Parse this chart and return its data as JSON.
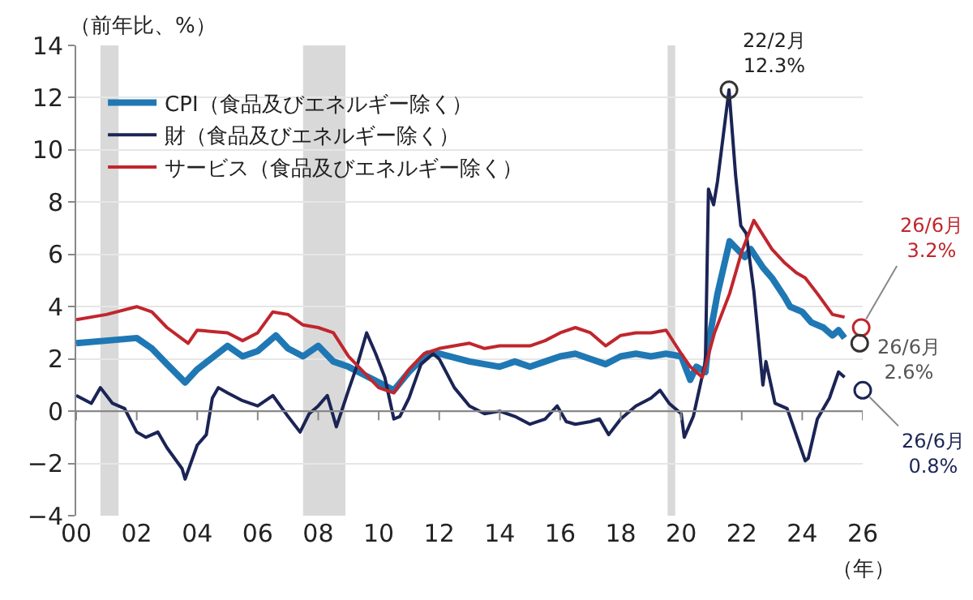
{
  "chart_data": {
    "type": "line",
    "ylabel": "（前年比、%）",
    "xlabel": "（年）",
    "xlim": [
      2000,
      2026
    ],
    "ylim": [
      -4,
      14
    ],
    "xticks": [
      {
        "value": 2000,
        "label": "00"
      },
      {
        "value": 2002,
        "label": "02"
      },
      {
        "value": 2004,
        "label": "04"
      },
      {
        "value": 2006,
        "label": "06"
      },
      {
        "value": 2008,
        "label": "08"
      },
      {
        "value": 2010,
        "label": "10"
      },
      {
        "value": 2012,
        "label": "12"
      },
      {
        "value": 2014,
        "label": "14"
      },
      {
        "value": 2016,
        "label": "16"
      },
      {
        "value": 2018,
        "label": "18"
      },
      {
        "value": 2020,
        "label": "20"
      },
      {
        "value": 2022,
        "label": "22"
      },
      {
        "value": 2024,
        "label": "24"
      },
      {
        "value": 2026,
        "label": "26"
      }
    ],
    "yticks": [
      -4,
      -2,
      0,
      2,
      4,
      6,
      8,
      10,
      12,
      14
    ],
    "grid": "y",
    "legend": "top left",
    "marker": "none",
    "line_style": "solid",
    "series": [
      {
        "name": "CPI（食品及びエネルギー除く）",
        "color": "#1f78b4",
        "x": [
          2000,
          2001,
          2002,
          2002.5,
          2003,
          2003.6,
          2004,
          2005,
          2005.5,
          2006,
          2006.6,
          2007,
          2007.5,
          2008,
          2008.5,
          2009,
          2009.5,
          2010,
          2010.5,
          2011,
          2011.6,
          2012,
          2013,
          2013.5,
          2014,
          2014.5,
          2015,
          2015.5,
          2016,
          2016.5,
          2017,
          2017.5,
          2018,
          2018.5,
          2019,
          2019.5,
          2020,
          2020.3,
          2020.5,
          2020.8,
          2020.9,
          2021.2,
          2021.6,
          2022.1,
          2022.3,
          2022.7,
          2023.0,
          2023.4,
          2023.6,
          2024,
          2024.3,
          2024.7,
          2025,
          2025.2,
          2025.4
        ],
        "values": [
          2.6,
          2.7,
          2.8,
          2.4,
          1.8,
          1.1,
          1.6,
          2.5,
          2.1,
          2.3,
          2.9,
          2.4,
          2.1,
          2.5,
          1.9,
          1.7,
          1.4,
          1.1,
          0.8,
          1.5,
          2.2,
          2.2,
          1.9,
          1.8,
          1.7,
          1.9,
          1.7,
          1.9,
          2.1,
          2.2,
          2.0,
          1.8,
          2.1,
          2.2,
          2.1,
          2.2,
          2.1,
          1.2,
          1.7,
          1.5,
          2.6,
          4.5,
          6.5,
          5.9,
          6.2,
          5.5,
          5.1,
          4.4,
          4.0,
          3.8,
          3.4,
          3.2,
          2.9,
          3.1,
          2.8
        ]
      },
      {
        "name": "財（食品及びエネルギー除く）",
        "color": "#1b2455",
        "x": [
          2000,
          2000.5,
          2000.8,
          2001.2,
          2001.6,
          2002,
          2002.3,
          2002.7,
          2003,
          2003.5,
          2003.6,
          2004,
          2004.3,
          2004.5,
          2004.7,
          2005,
          2005.5,
          2006,
          2006.5,
          2007,
          2007.4,
          2007.7,
          2008,
          2008.3,
          2008.6,
          2009,
          2009.3,
          2009.6,
          2009.9,
          2010.2,
          2010.5,
          2010.7,
          2011,
          2011.4,
          2011.8,
          2012,
          2012.5,
          2013,
          2013.5,
          2014,
          2014.5,
          2015,
          2015.5,
          2015.9,
          2016.2,
          2016.5,
          2017,
          2017.3,
          2017.6,
          2018,
          2018.5,
          2019,
          2019.3,
          2019.6,
          2020,
          2020.1,
          2020.4,
          2020.8,
          2020.9,
          2021.07,
          2021.2,
          2021.58,
          2021.8,
          2021.97,
          2022.15,
          2022.4,
          2022.7,
          2022.8,
          2023.1,
          2023.5,
          2023.8,
          2024.1,
          2024.2,
          2024.5,
          2024.9,
          2025.2,
          2025.4
        ],
        "values": [
          0.6,
          0.3,
          0.9,
          0.3,
          0.1,
          -0.8,
          -1.0,
          -0.8,
          -1.4,
          -2.2,
          -2.6,
          -1.3,
          -0.9,
          0.5,
          0.9,
          0.7,
          0.4,
          0.2,
          0.6,
          -0.2,
          -0.8,
          -0.1,
          0.2,
          0.6,
          -0.6,
          0.8,
          1.8,
          3.0,
          2.2,
          1.3,
          -0.3,
          -0.2,
          0.5,
          1.8,
          2.2,
          2.0,
          0.9,
          0.2,
          -0.1,
          0.0,
          -0.2,
          -0.5,
          -0.3,
          0.2,
          -0.4,
          -0.5,
          -0.4,
          -0.3,
          -0.9,
          -0.3,
          0.2,
          0.5,
          0.8,
          0.3,
          -0.1,
          -1.0,
          -0.2,
          1.9,
          8.5,
          7.9,
          8.8,
          12.3,
          9.0,
          7.1,
          6.8,
          4.6,
          1.0,
          1.9,
          0.3,
          0.1,
          -0.9,
          -1.9,
          -1.8,
          -0.3,
          0.5,
          1.5,
          1.3
        ]
      },
      {
        "name": "サービス（食品及びエネルギー除く）",
        "color": "#c0262d",
        "x": [
          2000,
          2001,
          2002,
          2002.5,
          2003,
          2003.7,
          2004,
          2005,
          2005.5,
          2006,
          2006.5,
          2007,
          2007.5,
          2008,
          2008.5,
          2009,
          2009.5,
          2010,
          2010.5,
          2011,
          2011.5,
          2012,
          2013,
          2013.5,
          2014,
          2015,
          2015.5,
          2016,
          2016.5,
          2017,
          2017.5,
          2018,
          2018.5,
          2019,
          2019.5,
          2020,
          2020.3,
          2020.7,
          2021.1,
          2021.6,
          2022.0,
          2022.4,
          2023.0,
          2023.4,
          2023.8,
          2024.1,
          2024.5,
          2025,
          2025.4
        ],
        "values": [
          3.5,
          3.7,
          4.0,
          3.8,
          3.2,
          2.6,
          3.1,
          3.0,
          2.7,
          3.0,
          3.8,
          3.7,
          3.3,
          3.2,
          3.0,
          2.1,
          1.5,
          0.9,
          0.7,
          1.6,
          2.2,
          2.4,
          2.6,
          2.4,
          2.5,
          2.5,
          2.7,
          3.0,
          3.2,
          3.0,
          2.5,
          2.9,
          3.0,
          3.0,
          3.1,
          2.2,
          1.7,
          1.3,
          3.0,
          4.5,
          6.1,
          7.3,
          6.2,
          5.7,
          5.3,
          5.1,
          4.5,
          3.7,
          3.6
        ]
      }
    ],
    "bands": [
      {
        "axis": "x",
        "from": 2000.8,
        "to": 2001.4,
        "color": "#d9d9d9"
      },
      {
        "axis": "x",
        "from": 2007.5,
        "to": 2008.9,
        "color": "#d9d9d9"
      },
      {
        "axis": "x",
        "from": 2019.55,
        "to": 2019.8,
        "color": "#d9d9d9"
      }
    ],
    "annotations": [
      {
        "text": "22/2月\n12.3%",
        "x": 2021.58,
        "y": 12.3
      },
      {
        "text": "26/6月\n3.2%",
        "x": 2025.95,
        "y": 3.2
      },
      {
        "text": "26/6月\n2.6%",
        "x": 2025.9,
        "y": 2.6
      },
      {
        "text": "26/6月\n0.8%",
        "x": 2026.0,
        "y": 0.8
      }
    ]
  }
}
